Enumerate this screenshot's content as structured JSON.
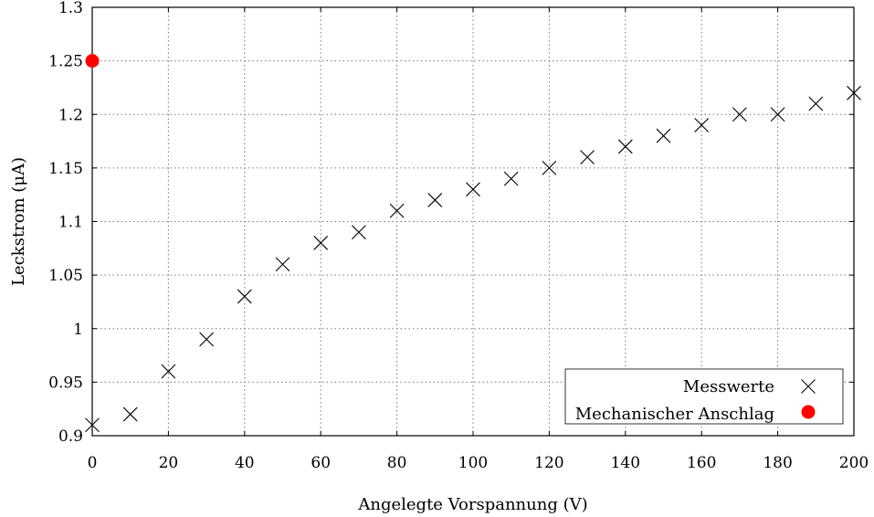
{
  "chart_data": {
    "type": "scatter",
    "xlabel": "Angelegte Vorspannung (V)",
    "ylabel": "Leckstrom (μA)",
    "xlim": [
      0,
      200
    ],
    "ylim": [
      0.9,
      1.3
    ],
    "x_ticks": [
      "0",
      "20",
      "40",
      "60",
      "80",
      "100",
      "120",
      "140",
      "160",
      "180",
      "200"
    ],
    "y_ticks": [
      "0.9",
      "0.95",
      "1",
      "1.05",
      "1.1",
      "1.15",
      "1.2",
      "1.25",
      "1.3"
    ],
    "grid": true,
    "legend_position": "bottom-right",
    "series": [
      {
        "name": "Messwerte",
        "marker": "cross",
        "color": "#000000",
        "points": [
          {
            "x": 0,
            "y": 0.91
          },
          {
            "x": 10,
            "y": 0.92
          },
          {
            "x": 20,
            "y": 0.96
          },
          {
            "x": 30,
            "y": 0.99
          },
          {
            "x": 40,
            "y": 1.03
          },
          {
            "x": 50,
            "y": 1.06
          },
          {
            "x": 60,
            "y": 1.08
          },
          {
            "x": 70,
            "y": 1.09
          },
          {
            "x": 80,
            "y": 1.11
          },
          {
            "x": 90,
            "y": 1.12
          },
          {
            "x": 100,
            "y": 1.13
          },
          {
            "x": 110,
            "y": 1.14
          },
          {
            "x": 120,
            "y": 1.15
          },
          {
            "x": 130,
            "y": 1.16
          },
          {
            "x": 140,
            "y": 1.17
          },
          {
            "x": 150,
            "y": 1.18
          },
          {
            "x": 160,
            "y": 1.19
          },
          {
            "x": 170,
            "y": 1.2
          },
          {
            "x": 180,
            "y": 1.2
          },
          {
            "x": 190,
            "y": 1.21
          },
          {
            "x": 200,
            "y": 1.22
          }
        ]
      },
      {
        "name": "Mechanischer Anschlag",
        "marker": "dot",
        "color": "#ff0000",
        "points": [
          {
            "x": 0,
            "y": 1.25
          }
        ]
      }
    ]
  }
}
